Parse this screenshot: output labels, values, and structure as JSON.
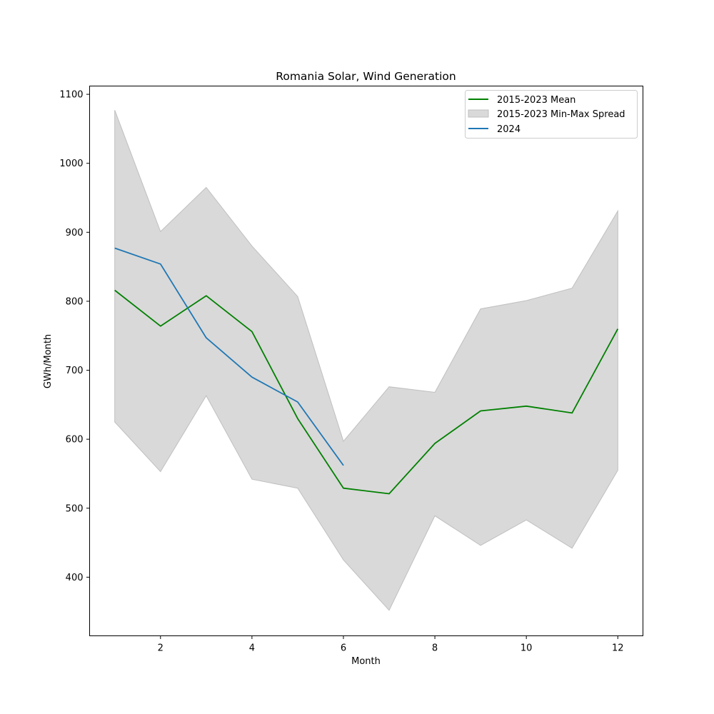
{
  "chart_data": {
    "type": "line",
    "title": "Romania Solar, Wind Generation",
    "xlabel": "Month",
    "ylabel": "GWh/Month",
    "xlim": [
      0.45,
      12.55
    ],
    "ylim": [
      315,
      1112
    ],
    "xticks": [
      2,
      4,
      6,
      8,
      10,
      12
    ],
    "yticks": [
      400,
      500,
      600,
      700,
      800,
      900,
      1000,
      1100
    ],
    "grid": false,
    "legend_position": "top-right",
    "x": [
      1,
      2,
      3,
      4,
      5,
      6,
      7,
      8,
      9,
      10,
      11,
      12
    ],
    "series": [
      {
        "name": "2015-2023 Mean",
        "kind": "line",
        "color": "#008000",
        "x": [
          1,
          2,
          3,
          4,
          5,
          6,
          7,
          8,
          9,
          10,
          11,
          12
        ],
        "values": [
          816,
          764,
          808,
          756,
          630,
          529,
          521,
          594,
          641,
          648,
          638,
          760
        ]
      },
      {
        "name": "2015-2023 Min-Max Spread",
        "kind": "band",
        "color": "#d9d9d9",
        "edge_color": "#bfbfbf",
        "x": [
          1,
          2,
          3,
          4,
          5,
          6,
          7,
          8,
          9,
          10,
          11,
          12
        ],
        "min": [
          625,
          553,
          663,
          542,
          529,
          425,
          352,
          489,
          446,
          483,
          442,
          555
        ],
        "max": [
          1077,
          901,
          965,
          880,
          807,
          597,
          676,
          668,
          789,
          801,
          819,
          931
        ]
      },
      {
        "name": "2024",
        "kind": "line",
        "color": "#1f77b4",
        "x": [
          1,
          2,
          3,
          4,
          5,
          6
        ],
        "values": [
          877,
          854,
          747,
          690,
          654,
          562
        ]
      }
    ]
  }
}
